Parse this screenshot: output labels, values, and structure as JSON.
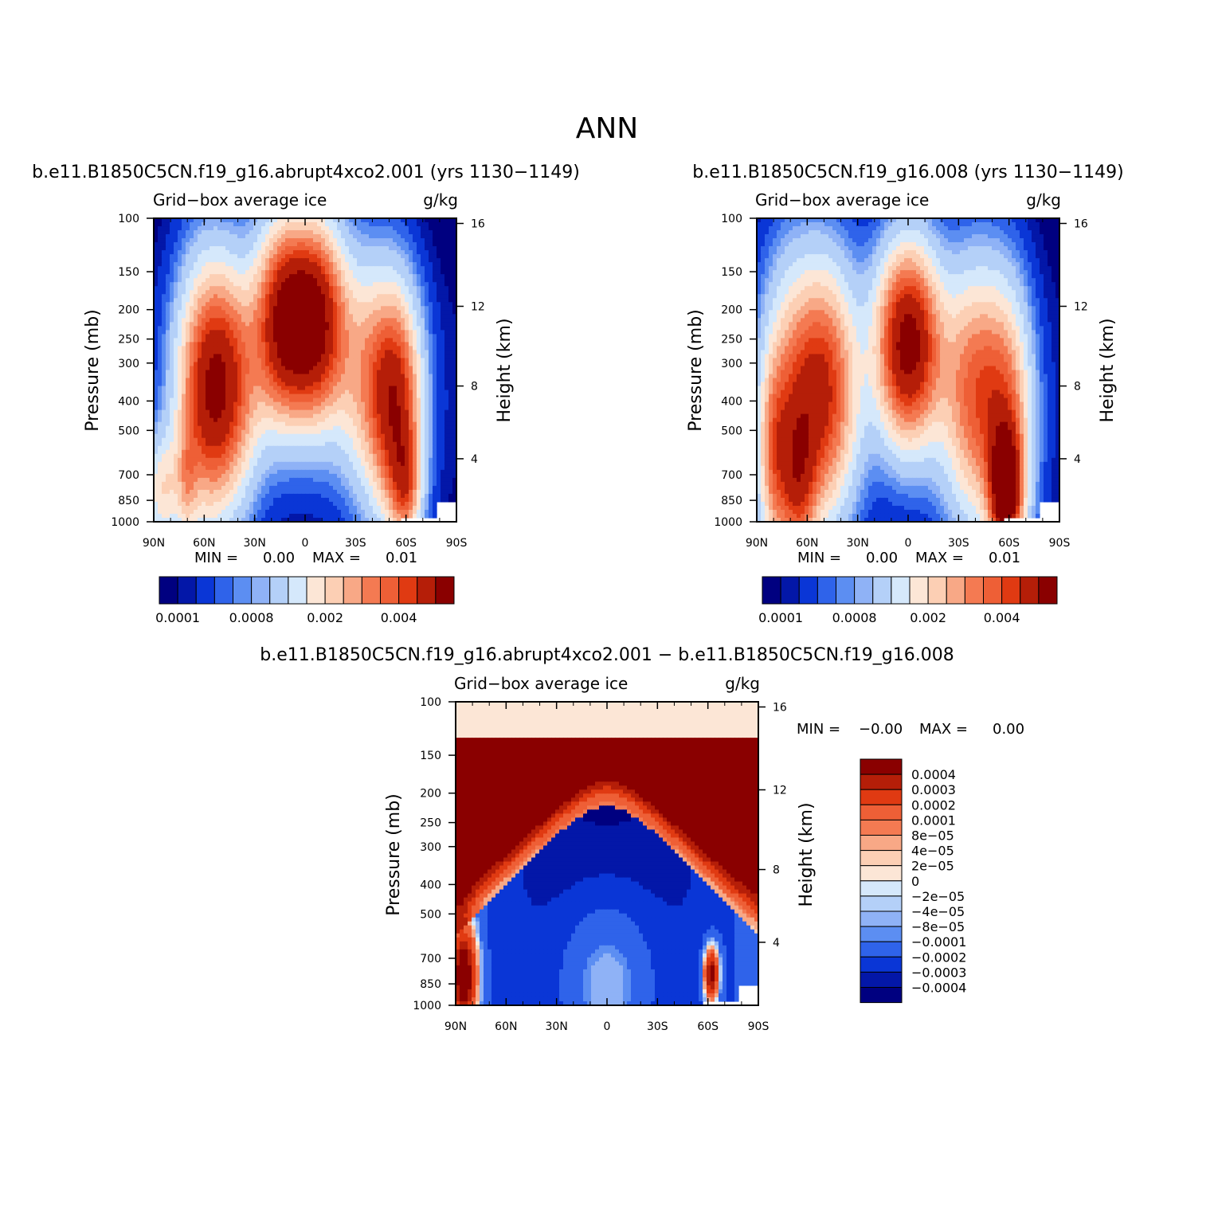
{
  "figure": {
    "title": "ANN"
  },
  "colors": {
    "pos": [
      "#fce6d6",
      "#fccfb4",
      "#f8a886",
      "#f47a52",
      "#ee5f36",
      "#e03a12",
      "#b51e08",
      "#8a0000"
    ],
    "neg": [
      "#d5e8fb",
      "#b4d0f8",
      "#8fb2f6",
      "#5c8ef2",
      "#2f63ea",
      "#0a36d6",
      "#0317a8",
      "#000080"
    ],
    "abs_scale": [
      "#000080",
      "#0317a8",
      "#0a36d6",
      "#2f63ea",
      "#5c8ef2",
      "#8fb2f6",
      "#b4d0f8",
      "#d5e8fb",
      "#fce6d6",
      "#fccfb4",
      "#f8a886",
      "#f47a52",
      "#ee5f36",
      "#e03a12",
      "#b51e08",
      "#8a0000"
    ]
  },
  "chart_data": [
    {
      "type": "heatmap",
      "panel_title": "b.e11.B1850C5CN.f19_g16.abrupt4xco2.001 (yrs 1130−1149)",
      "field_label": "Grid−box average ice",
      "units": "g/kg",
      "xlabel": "",
      "ylabel": "Pressure (mb)",
      "ylabel_right": "Height (km)",
      "x_ticks": [
        "90N",
        "60N",
        "30N",
        "0",
        "30S",
        "60S",
        "90S"
      ],
      "x_range": [
        90,
        -90
      ],
      "y_ticks": [
        "100",
        "150",
        "200",
        "250",
        "300",
        "400",
        "500",
        "700",
        "850",
        "1000"
      ],
      "y_log": true,
      "y_range": [
        1000,
        100
      ],
      "right_ticks": [
        "16",
        "12",
        "8",
        "4"
      ],
      "min_label": "MIN =",
      "min_value": "0.00",
      "max_label": "MAX =",
      "max_value": "0.01",
      "colorbar_labels": [
        "0.0001",
        "0.0008",
        "0.002",
        "0.004"
      ],
      "features": [
        {
          "lat": -5,
          "p": 220,
          "sx": 13,
          "sy": 0.22,
          "v": 0.0065
        },
        {
          "lat": 15,
          "p": 220,
          "sx": 11,
          "sy": 0.22,
          "v": 0.0045
        },
        {
          "lat": 48,
          "p": 350,
          "sx": 14,
          "sy": 0.26,
          "v": 0.0048
        },
        {
          "lat": 62,
          "p": 400,
          "sx": 12,
          "sy": 0.3,
          "v": 0.0025
        },
        {
          "lat": -40,
          "p": 340,
          "sx": 14,
          "sy": 0.26,
          "v": 0.003
        },
        {
          "lat": -55,
          "p": 430,
          "sx": 10,
          "sy": 0.25,
          "v": 0.0042
        },
        {
          "lat": -60,
          "p": 760,
          "sx": 6,
          "sy": 0.12,
          "v": 0.0026
        },
        {
          "lat": 85,
          "p": 790,
          "sx": 8,
          "sy": 0.13,
          "v": 0.0021
        },
        {
          "lat": 70,
          "p": 740,
          "sx": 4,
          "sy": 0.12,
          "v": 0.0014
        }
      ]
    },
    {
      "type": "heatmap",
      "panel_title": "b.e11.B1850C5CN.f19_g16.008 (yrs 1130−1149)",
      "field_label": "Grid−box average ice",
      "units": "g/kg",
      "xlabel": "",
      "ylabel": "Pressure (mb)",
      "ylabel_right": "Height (km)",
      "x_ticks": [
        "90N",
        "60N",
        "30N",
        "0",
        "30S",
        "60S",
        "90S"
      ],
      "x_range": [
        90,
        -90
      ],
      "y_ticks": [
        "100",
        "150",
        "200",
        "250",
        "300",
        "400",
        "500",
        "700",
        "850",
        "1000"
      ],
      "y_log": true,
      "y_range": [
        1000,
        100
      ],
      "right_ticks": [
        "16",
        "12",
        "8",
        "4"
      ],
      "min_label": "MIN =",
      "min_value": "0.00",
      "max_label": "MAX =",
      "max_value": "0.01",
      "colorbar_labels": [
        "0.0001",
        "0.0008",
        "0.002",
        "0.004"
      ],
      "features": [
        {
          "lat": 0,
          "p": 260,
          "sx": 13,
          "sy": 0.22,
          "v": 0.0065
        },
        {
          "lat": 50,
          "p": 370,
          "sx": 14,
          "sy": 0.28,
          "v": 0.0048
        },
        {
          "lat": 72,
          "p": 500,
          "sx": 12,
          "sy": 0.35,
          "v": 0.0028
        },
        {
          "lat": -40,
          "p": 380,
          "sx": 14,
          "sy": 0.28,
          "v": 0.004
        },
        {
          "lat": -60,
          "p": 500,
          "sx": 10,
          "sy": 0.3,
          "v": 0.003
        },
        {
          "lat": -58,
          "p": 790,
          "sx": 6,
          "sy": 0.13,
          "v": 0.0058
        },
        {
          "lat": 65,
          "p": 750,
          "sx": 7,
          "sy": 0.16,
          "v": 0.0022
        },
        {
          "lat": 80,
          "p": 600,
          "sx": 6,
          "sy": 0.2,
          "v": 0.0018
        }
      ]
    },
    {
      "type": "heatmap",
      "panel_title": "b.e11.B1850C5CN.f19_g16.abrupt4xco2.001 − b.e11.B1850C5CN.f19_g16.008",
      "field_label": "Grid−box average ice",
      "units": "g/kg",
      "xlabel": "",
      "ylabel": "Pressure (mb)",
      "ylabel_right": "Height (km)",
      "x_ticks": [
        "90N",
        "60N",
        "30N",
        "0",
        "30S",
        "60S",
        "90S"
      ],
      "x_range": [
        90,
        -90
      ],
      "y_ticks": [
        "100",
        "150",
        "200",
        "250",
        "300",
        "400",
        "500",
        "700",
        "850",
        "1000"
      ],
      "y_log": true,
      "y_range": [
        1000,
        100
      ],
      "right_ticks": [
        "16",
        "12",
        "8",
        "4"
      ],
      "min_label": "MIN =",
      "min_value": "−0.00",
      "max_label": "MAX =",
      "max_value": "0.00",
      "colorbar_labels": [
        "0.0004",
        "0.0003",
        "0.0002",
        "0.0001",
        "8e−05",
        "4e−05",
        "2e−05",
        "0",
        "−2e−05",
        "−4e−05",
        "−8e−05",
        "−0.0001",
        "−0.0002",
        "−0.0003",
        "−0.0004"
      ]
    }
  ]
}
